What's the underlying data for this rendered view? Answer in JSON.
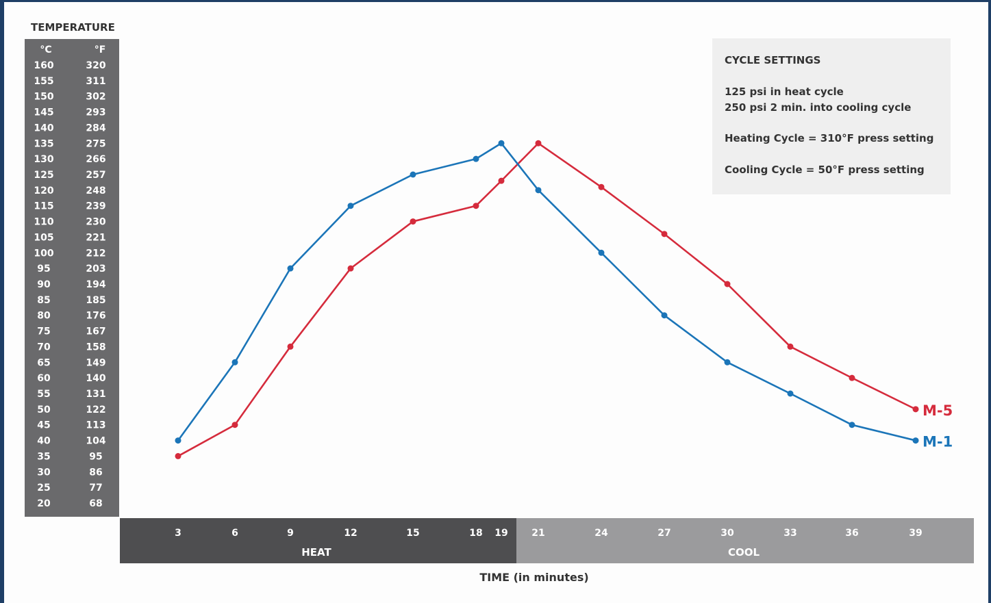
{
  "chart_data": {
    "type": "line",
    "title": "",
    "ylabel": "TEMPERATURE",
    "y_units": {
      "c": "°C",
      "f": "°F"
    },
    "y_ticks_c": [
      160,
      155,
      150,
      145,
      140,
      135,
      130,
      125,
      120,
      115,
      110,
      105,
      100,
      95,
      90,
      85,
      80,
      75,
      70,
      65,
      60,
      55,
      50,
      45,
      40,
      35,
      30,
      25,
      20
    ],
    "y_ticks_f": [
      320,
      311,
      302,
      293,
      284,
      275,
      266,
      257,
      248,
      239,
      230,
      221,
      212,
      203,
      194,
      185,
      176,
      167,
      158,
      149,
      140,
      131,
      122,
      113,
      104,
      95,
      86,
      77,
      68
    ],
    "ylim": [
      20,
      160
    ],
    "xlabel": "TIME (in minutes)",
    "x_ticks_heat": [
      3,
      6,
      9,
      12,
      15,
      18,
      19
    ],
    "x_ticks_cool": [
      21,
      24,
      27,
      30,
      33,
      36,
      39
    ],
    "phase_labels": {
      "heat": "HEAT",
      "cool": "COOL"
    },
    "series": [
      {
        "name": "M-5",
        "color": "#d52b3c",
        "x": [
          3,
          6,
          9,
          12,
          15,
          18,
          19,
          21,
          24,
          27,
          30,
          33,
          36,
          39
        ],
        "values": [
          35,
          45,
          70,
          95,
          110,
          115,
          123,
          135,
          121,
          106,
          90,
          70,
          60,
          50
        ]
      },
      {
        "name": "M-1",
        "color": "#1b75b8",
        "x": [
          3,
          6,
          9,
          12,
          15,
          18,
          19,
          21,
          24,
          27,
          30,
          33,
          36,
          39
        ],
        "values": [
          40,
          65,
          95,
          115,
          125,
          130,
          135,
          120,
          100,
          80,
          65,
          55,
          45,
          40
        ]
      }
    ],
    "grid": false,
    "legend": "line-end labels"
  },
  "settings_box": {
    "title": "CYCLE SETTINGS",
    "lines": [
      "125 psi in heat cycle",
      "250 psi 2 min. into cooling cycle",
      "Heating Cycle = 310°F press setting",
      "Cooling Cycle = 50°F press setting"
    ]
  },
  "colors": {
    "axis_panel": "#6a6a6c",
    "heat_band": "#4e4e50",
    "cool_band": "#9b9b9d",
    "settings_bg": "#efefef",
    "text_dark": "#333333"
  }
}
